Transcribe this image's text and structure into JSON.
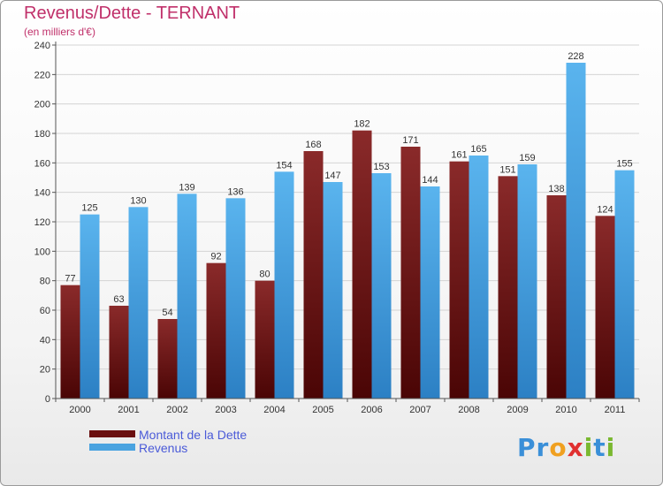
{
  "title": "Revenus/Dette - TERNANT",
  "subtitle": "(en milliers d'€)",
  "chart_data": {
    "type": "bar",
    "categories": [
      "2000",
      "2001",
      "2002",
      "2003",
      "2004",
      "2005",
      "2006",
      "2007",
      "2008",
      "2009",
      "2010",
      "2011"
    ],
    "series": [
      {
        "name": "Montant de la Dette",
        "color": "#7a1a1a",
        "values": [
          77,
          63,
          54,
          92,
          80,
          168,
          182,
          171,
          161,
          151,
          138,
          124
        ]
      },
      {
        "name": "Revenus",
        "color": "#4aa3e0",
        "values": [
          125,
          130,
          139,
          136,
          154,
          147,
          153,
          144,
          165,
          159,
          228,
          155
        ]
      }
    ],
    "ylim": [
      0,
      240
    ],
    "yticks": [
      0,
      20,
      40,
      60,
      80,
      100,
      120,
      140,
      160,
      180,
      200,
      220,
      240
    ],
    "grid": true,
    "legend": "bottom-left"
  },
  "legend": {
    "items": [
      {
        "label": "Montant de la Dette",
        "color": "#6a0f0f"
      },
      {
        "label": "Revenus",
        "color": "#4aa3e0"
      }
    ]
  },
  "logo": {
    "letters": [
      "P",
      "r",
      "o",
      "x",
      "i",
      "t",
      "i"
    ],
    "colors": [
      "#3a8fd8",
      "#3a8fd8",
      "#f0a020",
      "#e03030",
      "#7ab830",
      "#3a8fd8",
      "#7ab830"
    ]
  }
}
